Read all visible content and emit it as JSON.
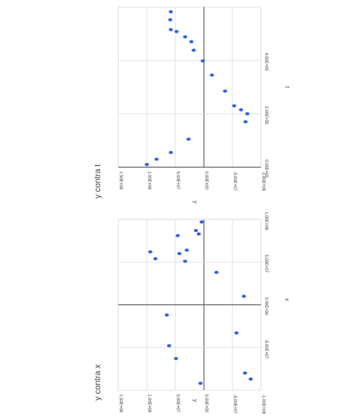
{
  "chart_data": [
    {
      "type": "scatter",
      "title": "y contra x",
      "xlabel": "x",
      "ylabel": "y",
      "xlim": [
        -100000000,
        100000000
      ],
      "ylim": [
        -100000000,
        150000000
      ],
      "x_ticks": [
        "-5.00E+07",
        "0.00E+00",
        "5.00E+07",
        "1.00E+08"
      ],
      "y_ticks": [
        "-1.00E+08",
        "-5.00E+07",
        "0.00E+00",
        "5.00E+07",
        "1.00E+08",
        "1.50E+08"
      ],
      "grid": true,
      "marker_color": "#3366dd",
      "series": [
        {
          "x": [
            97000000,
            83000000,
            87000000,
            64000000,
            51000000,
            60000000,
            81000000,
            54000000,
            62000000,
            38000000,
            10000000,
            -12000000,
            -33000000,
            -48000000,
            -63000000,
            -80000000,
            -87000000,
            -92000000
          ],
          "y": [
            4000000,
            9000000,
            14000000,
            30000000,
            33000000,
            43000000,
            46000000,
            85000000,
            94000000,
            -22000000,
            -70000000,
            65000000,
            -57000000,
            61000000,
            49000000,
            -72000000,
            -82000000,
            6000000
          ]
        }
      ]
    },
    {
      "type": "scatter",
      "title": "y contra t",
      "xlabel": "t",
      "ylabel": "y",
      "xlim": [
        0,
        600000
      ],
      "ylim": [
        -100000000,
        150000000
      ],
      "x_ticks": [
        "0.00E+00",
        "2.00E+05",
        "4.00E+05"
      ],
      "y_ticks": [
        "-1.00E+08",
        "-5.00E+07",
        "0.00E+00",
        "5.00E+07",
        "1.00E+08",
        "1.50E+08"
      ],
      "grid": true,
      "marker_color": "#3366dd",
      "series": [
        {
          "x": [
            10000,
            30000,
            55000,
            105000,
            170000,
            200000,
            215000,
            230000,
            285000,
            345000,
            398000,
            438000,
            470000,
            488000,
            508000,
            515000,
            552000,
            582000
          ],
          "y": [
            100000000,
            83000000,
            58000000,
            27000000,
            -73000000,
            -76000000,
            -65000000,
            -53000000,
            -37000000,
            -14000000,
            2000000,
            18000000,
            22000000,
            33000000,
            48000000,
            58000000,
            59000000,
            58000000
          ]
        }
      ]
    }
  ]
}
